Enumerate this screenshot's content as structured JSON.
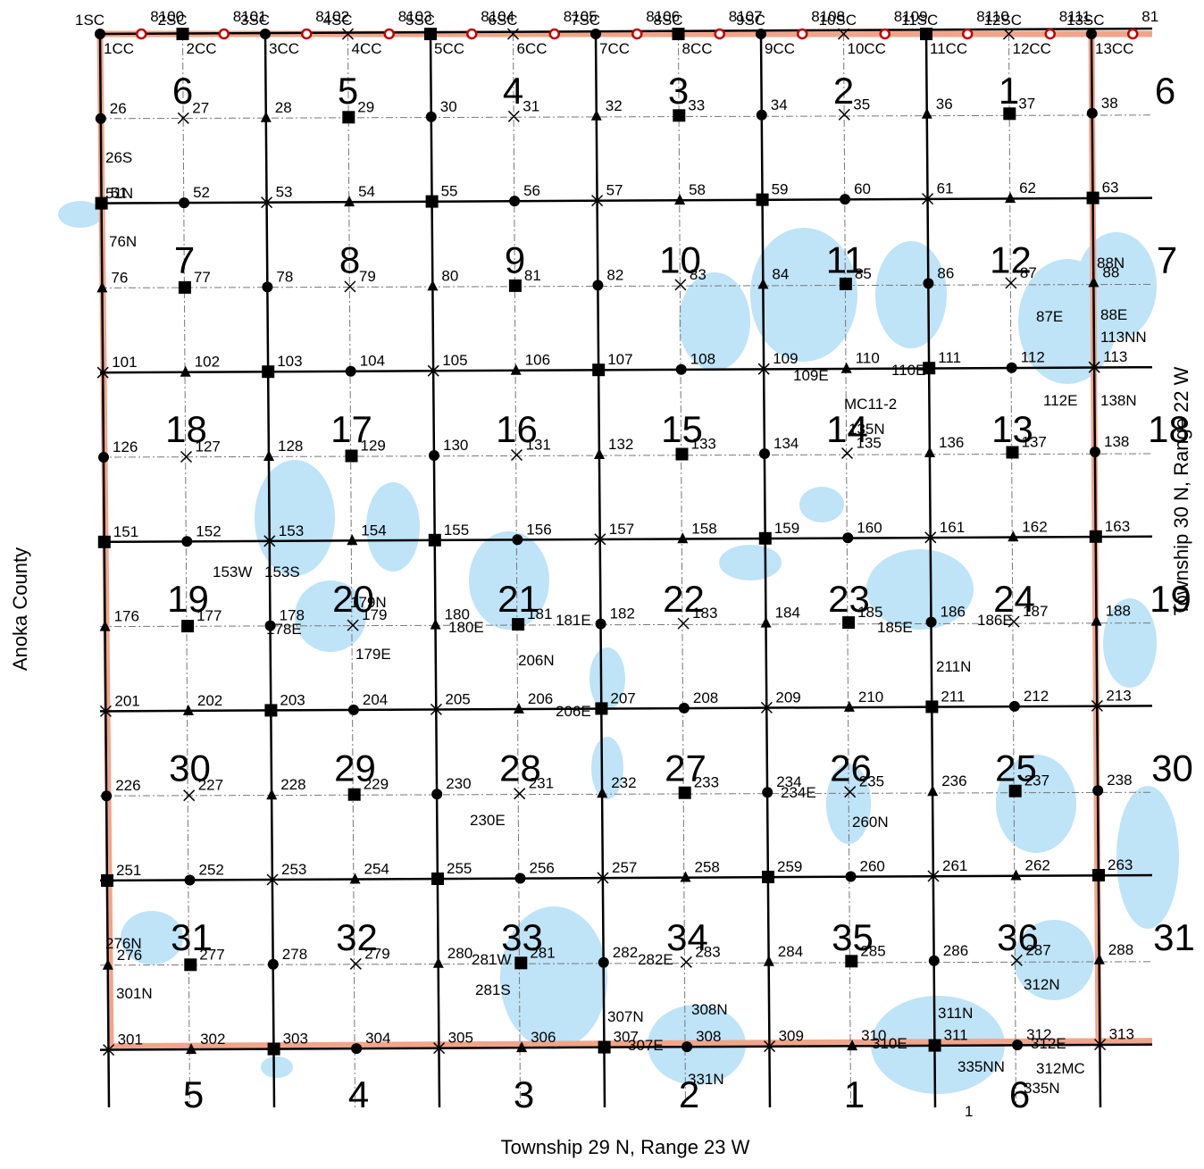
{
  "title": "",
  "labels": {
    "west_county": "Anoka County",
    "east_township": "Township 30 N, Range 22 W",
    "south_township": "Township 29 N, Range 23 W"
  },
  "colors": {
    "water": "#bfe3f7",
    "boundary": "#f0a58a",
    "road": "#000000",
    "grid": "#777777",
    "survey_marker": "#c00000"
  },
  "corner_labels": {
    "top_sc": [
      "1SC",
      "2SC",
      "3SC",
      "4SC",
      "5SC",
      "6SC",
      "7SC",
      "8SC",
      "9SC",
      "10SC",
      "11SC",
      "12SC",
      "13SC"
    ],
    "top_cc": [
      "1CC",
      "2CC",
      "3CC",
      "4CC",
      "5CC",
      "6CC",
      "7CC",
      "8CC",
      "9CC",
      "10CC",
      "11CC",
      "12CC",
      "13CC"
    ],
    "top_survey": [
      "8100",
      "8101",
      "8102",
      "8103",
      "8104",
      "8105",
      "8106",
      "8107",
      "8108",
      "8109",
      "8110",
      "8111",
      "81"
    ],
    "rows": [
      [
        "26",
        "27",
        "28",
        "29",
        "30",
        "31",
        "32",
        "33",
        "34",
        "35",
        "36",
        "37",
        "38"
      ],
      [
        "51",
        "52",
        "53",
        "54",
        "55",
        "56",
        "57",
        "58",
        "59",
        "60",
        "61",
        "62",
        "63"
      ],
      [
        "76",
        "77",
        "78",
        "79",
        "80",
        "81",
        "82",
        "83",
        "84",
        "85",
        "86",
        "87",
        "88"
      ],
      [
        "101",
        "102",
        "103",
        "104",
        "105",
        "106",
        "107",
        "108",
        "109",
        "110",
        "111",
        "112",
        "113"
      ],
      [
        "126",
        "127",
        "128",
        "129",
        "130",
        "131",
        "132",
        "133",
        "134",
        "135",
        "136",
        "137",
        "138"
      ],
      [
        "151",
        "152",
        "153",
        "154",
        "155",
        "156",
        "157",
        "158",
        "159",
        "160",
        "161",
        "162",
        "163"
      ],
      [
        "176",
        "177",
        "178",
        "179",
        "180",
        "181",
        "182",
        "183",
        "184",
        "185",
        "186",
        "187",
        "188"
      ],
      [
        "201",
        "202",
        "203",
        "204",
        "205",
        "206",
        "207",
        "208",
        "209",
        "210",
        "211",
        "212",
        "213"
      ],
      [
        "226",
        "227",
        "228",
        "229",
        "230",
        "231",
        "232",
        "233",
        "234",
        "235",
        "236",
        "237",
        "238"
      ],
      [
        "251",
        "252",
        "253",
        "254",
        "255",
        "256",
        "257",
        "258",
        "259",
        "260",
        "261",
        "262",
        "263"
      ],
      [
        "276",
        "277",
        "278",
        "279",
        "280",
        "281",
        "282",
        "283",
        "284",
        "285",
        "286",
        "287",
        "288"
      ],
      [
        "301",
        "302",
        "303",
        "304",
        "305",
        "306",
        "307",
        "308",
        "309",
        "310",
        "311",
        "312",
        "313"
      ]
    ],
    "extras": [
      "26S",
      "51N",
      "76N",
      "88N",
      "87E",
      "88E",
      "113NN",
      "109E",
      "110E",
      "MC11-2",
      "112E",
      "138N",
      "135N",
      "153W",
      "153S",
      "179N",
      "178E",
      "179E",
      "180E",
      "181E",
      "206N",
      "185E",
      "186E",
      "211N",
      "206E",
      "230E",
      "234E",
      "260N",
      "276N",
      "301N",
      "281W",
      "281S",
      "282E",
      "307N",
      "308N",
      "312N",
      "311N",
      "307E",
      "331N",
      "310E",
      "312E",
      "335NN",
      "312MC",
      "335N",
      "1"
    ]
  },
  "sections": [
    [
      "6",
      "5",
      "4",
      "3",
      "2",
      "1",
      "6"
    ],
    [
      "7",
      "8",
      "9",
      "10",
      "11",
      "12",
      "7"
    ],
    [
      "18",
      "17",
      "16",
      "15",
      "14",
      "13",
      "18"
    ],
    [
      "19",
      "20",
      "21",
      "22",
      "23",
      "24",
      "19"
    ],
    [
      "30",
      "29",
      "28",
      "27",
      "26",
      "25",
      "30"
    ],
    [
      "31",
      "32",
      "33",
      "34",
      "35",
      "36",
      "31"
    ],
    [
      "5",
      "4",
      "3",
      "2",
      "1",
      "6"
    ]
  ],
  "legend_icons": [
    "circle-monument",
    "square-monument",
    "triangle-monument",
    "x-monument",
    "survey-station-icon"
  ]
}
